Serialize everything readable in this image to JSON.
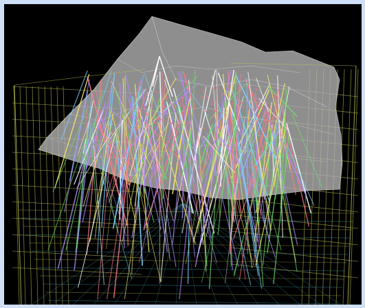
{
  "viewer": {
    "background": "#000000",
    "frame_color": "#cfe0f7",
    "surface_color": "#b4b4b4",
    "grid_color_primary": "#c8cc55",
    "grid_color_secondary": "#55b7c8",
    "trace_colors": [
      "#6fe06a",
      "#7ad0ff",
      "#f0e86a",
      "#ff7b8e",
      "#b48cff",
      "#ffffff"
    ]
  }
}
